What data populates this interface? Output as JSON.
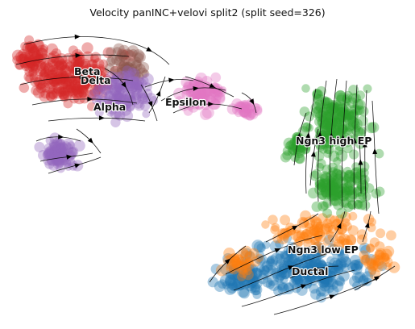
{
  "chart_data": {
    "type": "scatter",
    "title": "Velocity panINC+velovi split2 (split seed=326)",
    "xlabel": "",
    "ylabel": "",
    "grid": false,
    "legend": "on data",
    "clusters": [
      {
        "name": "Beta",
        "color": "#d62728"
      },
      {
        "name": "Delta",
        "color": "#8c564b"
      },
      {
        "name": "Alpha",
        "color": "#9467bd"
      },
      {
        "name": "Epsilon",
        "color": "#e377c2"
      },
      {
        "name": "Ngn3 high EP",
        "color": "#2ca02c"
      },
      {
        "name": "Ngn3 low EP",
        "color": "#ff7f0e"
      },
      {
        "name": "Ductal",
        "color": "#1f77b4"
      }
    ],
    "overlay": "velocity streamlines with arrows"
  }
}
